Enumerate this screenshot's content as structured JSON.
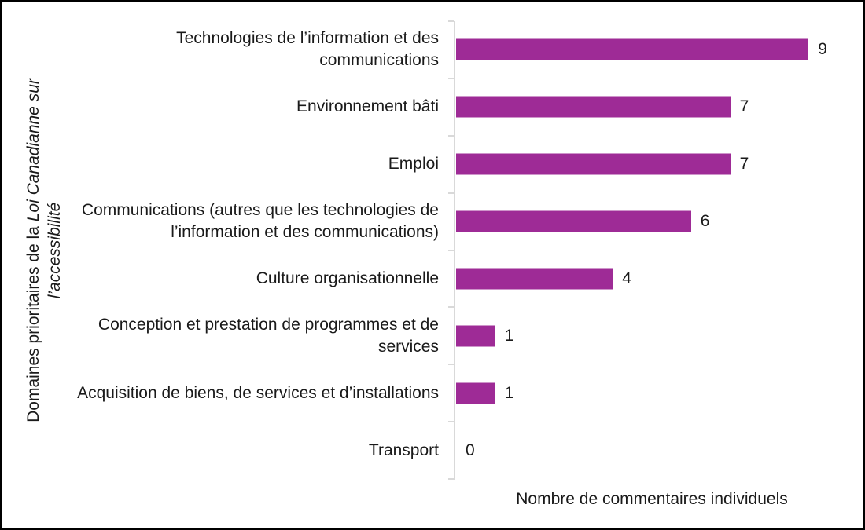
{
  "chart_data": {
    "type": "bar",
    "orientation": "horizontal",
    "categories": [
      [
        "Technologies de l’information et des",
        "communications"
      ],
      [
        "Environnement bâti"
      ],
      [
        "Emploi"
      ],
      [
        "Communications (autres que les technologies de",
        "l’information et des communications)"
      ],
      [
        "Culture organisationnelle"
      ],
      [
        "Conception et prestation de programmes et de",
        "services"
      ],
      [
        "Acquisition de biens, de services et d’installations"
      ],
      [
        "Transport"
      ]
    ],
    "values": [
      9,
      7,
      7,
      6,
      4,
      1,
      1,
      0
    ],
    "xlabel": "Nombre de commentaires individuels",
    "ylabel_normal": "Domaines prioritaires de la ",
    "ylabel_italic_line1": "Loi Canadianne sur",
    "ylabel_italic_line2": "l’accessibilité",
    "xlim": [
      0,
      10
    ],
    "bar_color": "#9E2B96",
    "axis_color": "#D9D9D9",
    "text_color": "#1A1A1A",
    "grid": false,
    "legend": false
  }
}
